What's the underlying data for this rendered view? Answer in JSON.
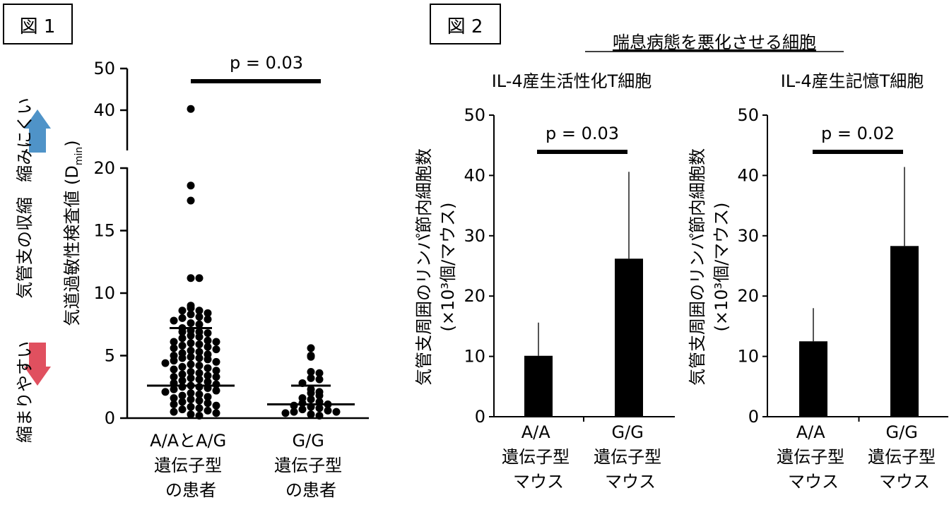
{
  "figure1": {
    "label": "図 1",
    "side_label_top": "縮みにくい",
    "side_label_mid": "気管支の収縮",
    "side_label_bottom": "縮まりやすい",
    "ylabel_main": "気道過敏性検査値 (D",
    "ylabel_sub": "min",
    "ylabel_close": ")",
    "pvalue": "p = 0.03",
    "ticks": [
      "0",
      "5",
      "10",
      "15",
      "20",
      "40",
      "50"
    ],
    "categories": [
      {
        "lines": [
          "A/AとA/G",
          "遺伝子型",
          "の患者"
        ]
      },
      {
        "lines": [
          "G/G",
          "遺伝子型",
          "の患者"
        ]
      }
    ],
    "colors": {
      "up_arrow": "#4f93c8",
      "down_arrow": "#e0505f"
    }
  },
  "figure2": {
    "label": "図 2",
    "header": "喘息病態を悪化させる細胞",
    "ylabel_line1": "気管支周囲のリンパ節内細胞数",
    "ylabel_line2": "(×10³個/マウス)",
    "ticks": [
      "0",
      "10",
      "20",
      "30",
      "40",
      "50"
    ],
    "panels": [
      {
        "title": "IL-4産生活性化T細胞",
        "pvalue": "p = 0.03"
      },
      {
        "title": "IL-4産生記憶T細胞",
        "pvalue": "p = 0.02"
      }
    ],
    "categories": [
      {
        "lines": [
          "A/A",
          "遺伝子型",
          "マウス"
        ]
      },
      {
        "lines": [
          "G/G",
          "遺伝子型",
          "マウス"
        ]
      }
    ]
  },
  "chart_data": [
    {
      "type": "scatter",
      "title": "",
      "ylabel": "気道過敏性検査値 (Dmin)",
      "y_axis": "broken between 20 and 40",
      "ylim": [
        0,
        50
      ],
      "categories": [
        "A/AとA/G 遺伝子型 の患者",
        "G/G 遺伝子型 の患者"
      ],
      "series": [
        {
          "values": [
            40.3,
            18.6,
            17.4,
            11.2,
            11.2,
            9.0,
            8.8,
            8.6,
            8.6,
            8.4,
            8.3,
            8.1,
            8.0,
            7.9,
            7.8,
            7.6,
            7.5,
            7.2,
            7.0,
            6.9,
            6.9,
            6.8,
            6.6,
            6.5,
            6.4,
            6.2,
            6.1,
            6.1,
            6.0,
            5.9,
            5.8,
            5.7,
            5.6,
            5.5,
            5.4,
            5.3,
            5.2,
            5.1,
            5.0,
            4.9,
            4.8,
            4.8,
            4.7,
            4.6,
            4.5,
            4.4,
            4.3,
            4.2,
            4.1,
            4.0,
            3.9,
            3.8,
            3.7,
            3.6,
            3.5,
            3.4,
            3.3,
            3.3,
            3.2,
            3.1,
            3.0,
            2.9,
            2.8,
            2.7,
            2.6,
            2.5,
            2.5,
            2.4,
            2.3,
            2.2,
            2.1,
            2.0,
            1.9,
            1.8,
            1.7,
            1.6,
            1.5,
            1.4,
            1.3,
            1.2,
            1.1,
            1.0,
            0.9,
            0.8,
            0.7,
            0.6,
            0.5,
            0.4,
            0.3,
            0.2
          ],
          "mean": 2.6,
          "sd_upper": 7.2
        },
        {
          "values": [
            5.6,
            5.0,
            4.9,
            3.7,
            3.6,
            3.2,
            3.1,
            2.8,
            2.3,
            2.1,
            2.0,
            1.8,
            1.6,
            1.5,
            1.3,
            1.2,
            1.1,
            1.0,
            0.9,
            0.8,
            0.7,
            0.6,
            0.5,
            0.5,
            0.4,
            0.3,
            0.2
          ],
          "mean": 1.1,
          "sd_upper": 2.6
        }
      ],
      "pvalue": "p = 0.03"
    },
    {
      "type": "bar",
      "title": "IL-4産生活性化T細胞",
      "ylabel": "気管支周囲のリンパ節内細胞数 (×10³個/マウス)",
      "ylim": [
        0,
        50
      ],
      "categories": [
        "A/A 遺伝子型 マウス",
        "G/G 遺伝子型 マウス"
      ],
      "values": [
        10.1,
        26.2
      ],
      "error_upper": [
        15.6,
        40.6
      ],
      "pvalue": "p = 0.03"
    },
    {
      "type": "bar",
      "title": "IL-4産生記憶T細胞",
      "ylabel": "気管支周囲のリンパ節内細胞数 (×10³個/マウス)",
      "ylim": [
        0,
        50
      ],
      "categories": [
        "A/A 遺伝子型 マウス",
        "G/G 遺伝子型 マウス"
      ],
      "values": [
        12.5,
        28.3
      ],
      "error_upper": [
        18.0,
        41.4
      ],
      "pvalue": "p = 0.02"
    }
  ]
}
